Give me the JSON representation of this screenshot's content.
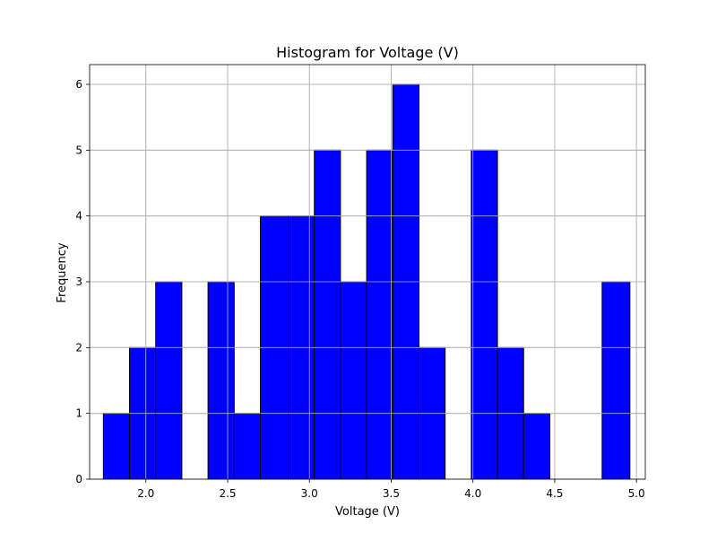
{
  "chart_data": {
    "type": "bar",
    "title": "Histogram for Voltage (V)",
    "xlabel": "Voltage (V)",
    "ylabel": "Frequency",
    "xlim": [
      1.656,
      5.054
    ],
    "ylim": [
      0,
      6.3
    ],
    "grid": true,
    "bar_color": "#0000ff",
    "edge_color": "#000000",
    "grid_color": "#b0b0b0",
    "bins": [
      {
        "x0": 1.74,
        "x1": 1.9,
        "count": 1
      },
      {
        "x0": 1.9,
        "x1": 2.06,
        "count": 2
      },
      {
        "x0": 2.06,
        "x1": 2.22,
        "count": 3
      },
      {
        "x0": 2.22,
        "x1": 2.38,
        "count": 0
      },
      {
        "x0": 2.38,
        "x1": 2.54,
        "count": 3
      },
      {
        "x0": 2.54,
        "x1": 2.7,
        "count": 1
      },
      {
        "x0": 2.7,
        "x1": 2.87,
        "count": 4
      },
      {
        "x0": 2.87,
        "x1": 3.03,
        "count": 4
      },
      {
        "x0": 3.03,
        "x1": 3.19,
        "count": 5
      },
      {
        "x0": 3.19,
        "x1": 3.35,
        "count": 3
      },
      {
        "x0": 3.35,
        "x1": 3.51,
        "count": 5
      },
      {
        "x0": 3.51,
        "x1": 3.67,
        "count": 6
      },
      {
        "x0": 3.67,
        "x1": 3.83,
        "count": 2
      },
      {
        "x0": 3.83,
        "x1": 3.99,
        "count": 0
      },
      {
        "x0": 3.99,
        "x1": 4.15,
        "count": 5
      },
      {
        "x0": 4.15,
        "x1": 4.31,
        "count": 2
      },
      {
        "x0": 4.31,
        "x1": 4.47,
        "count": 1
      },
      {
        "x0": 4.47,
        "x1": 4.63,
        "count": 0
      },
      {
        "x0": 4.63,
        "x1": 4.79,
        "count": 0
      },
      {
        "x0": 4.79,
        "x1": 4.96,
        "count": 3
      }
    ],
    "xticks": [
      {
        "value": 2.0,
        "label": "2.0"
      },
      {
        "value": 2.5,
        "label": "2.5"
      },
      {
        "value": 3.0,
        "label": "3.0"
      },
      {
        "value": 3.5,
        "label": "3.5"
      },
      {
        "value": 4.0,
        "label": "4.0"
      },
      {
        "value": 4.5,
        "label": "4.5"
      },
      {
        "value": 5.0,
        "label": "5.0"
      }
    ],
    "yticks": [
      {
        "value": 0,
        "label": "0"
      },
      {
        "value": 1,
        "label": "1"
      },
      {
        "value": 2,
        "label": "2"
      },
      {
        "value": 3,
        "label": "3"
      },
      {
        "value": 4,
        "label": "4"
      },
      {
        "value": 5,
        "label": "5"
      },
      {
        "value": 6,
        "label": "6"
      }
    ]
  }
}
